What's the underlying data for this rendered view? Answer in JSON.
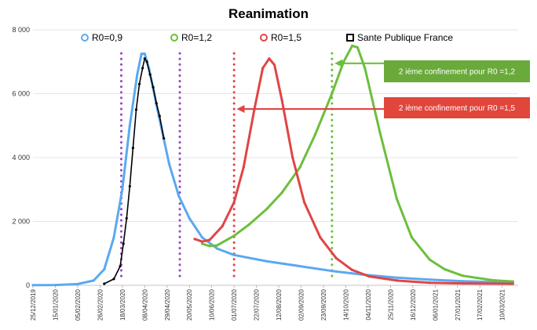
{
  "chart_data": {
    "type": "line",
    "title": "Reanimation",
    "xlabel": "",
    "ylabel": "",
    "x_start": "2019-12-25",
    "x_end": "2021-03-25",
    "ylim": [
      0,
      8000
    ],
    "y_ticks": [
      "0",
      "2 000",
      "4 000",
      "6 000",
      "8 000"
    ],
    "x_ticks": [
      "25/12/2019",
      "15/01/2020",
      "05/02/2020",
      "26/02/2020",
      "18/03/2020",
      "08/04/2020",
      "29/04/2020",
      "20/05/2020",
      "10/06/2020",
      "01/07/2020",
      "22/07/2020",
      "12/08/2020",
      "02/09/2020",
      "23/09/2020",
      "14/10/2020",
      "04/11/2020",
      "25/11/2020",
      "16/12/2020",
      "06/01/2021",
      "27/01/2021",
      "17/02/2021",
      "10/03/2021"
    ],
    "grid": "horizontal",
    "legend_position": "top",
    "series": [
      {
        "name": "R0=0,9",
        "color": "#5aa9f0",
        "points": [
          [
            "2019-12-25",
            5
          ],
          [
            "2020-01-15",
            10
          ],
          [
            "2020-02-05",
            40
          ],
          [
            "2020-02-20",
            150
          ],
          [
            "2020-03-01",
            500
          ],
          [
            "2020-03-10",
            1500
          ],
          [
            "2020-03-18",
            3000
          ],
          [
            "2020-03-25",
            5000
          ],
          [
            "2020-04-01",
            6600
          ],
          [
            "2020-04-05",
            7250
          ],
          [
            "2020-04-08",
            7250
          ],
          [
            "2020-04-12",
            6800
          ],
          [
            "2020-04-20",
            5500
          ],
          [
            "2020-05-01",
            3800
          ],
          [
            "2020-05-10",
            2800
          ],
          [
            "2020-05-20",
            2100
          ],
          [
            "2020-06-01",
            1500
          ],
          [
            "2020-06-15",
            1150
          ],
          [
            "2020-07-01",
            950
          ],
          [
            "2020-08-01",
            750
          ],
          [
            "2020-09-01",
            600
          ],
          [
            "2020-10-01",
            450
          ],
          [
            "2020-11-01",
            330
          ],
          [
            "2020-12-01",
            240
          ],
          [
            "2021-01-01",
            180
          ],
          [
            "2021-02-01",
            130
          ],
          [
            "2021-03-01",
            100
          ],
          [
            "2021-03-20",
            90
          ]
        ]
      },
      {
        "name": "R0=1,2",
        "color": "#6cbf3c",
        "points": [
          [
            "2020-06-01",
            1300
          ],
          [
            "2020-06-08",
            1230
          ],
          [
            "2020-06-15",
            1250
          ],
          [
            "2020-07-01",
            1550
          ],
          [
            "2020-07-15",
            1900
          ],
          [
            "2020-08-01",
            2400
          ],
          [
            "2020-08-15",
            2900
          ],
          [
            "2020-09-01",
            3700
          ],
          [
            "2020-09-15",
            4700
          ],
          [
            "2020-10-01",
            6000
          ],
          [
            "2020-10-12",
            7000
          ],
          [
            "2020-10-20",
            7500
          ],
          [
            "2020-10-25",
            7450
          ],
          [
            "2020-11-01",
            6800
          ],
          [
            "2020-11-15",
            4800
          ],
          [
            "2020-12-01",
            2700
          ],
          [
            "2020-12-15",
            1500
          ],
          [
            "2021-01-01",
            800
          ],
          [
            "2021-01-15",
            500
          ],
          [
            "2021-02-01",
            300
          ],
          [
            "2021-03-01",
            160
          ],
          [
            "2021-03-20",
            120
          ]
        ]
      },
      {
        "name": "R0=1,5",
        "color": "#e04545",
        "points": [
          [
            "2020-05-25",
            1450
          ],
          [
            "2020-06-01",
            1370
          ],
          [
            "2020-06-08",
            1420
          ],
          [
            "2020-06-20",
            1850
          ],
          [
            "2020-07-01",
            2600
          ],
          [
            "2020-07-10",
            3700
          ],
          [
            "2020-07-20",
            5500
          ],
          [
            "2020-07-28",
            6800
          ],
          [
            "2020-08-03",
            7100
          ],
          [
            "2020-08-08",
            6900
          ],
          [
            "2020-08-15",
            5800
          ],
          [
            "2020-08-25",
            4000
          ],
          [
            "2020-09-05",
            2600
          ],
          [
            "2020-09-20",
            1500
          ],
          [
            "2020-10-05",
            850
          ],
          [
            "2020-10-20",
            480
          ],
          [
            "2020-11-05",
            280
          ],
          [
            "2020-12-01",
            150
          ],
          [
            "2021-01-01",
            80
          ],
          [
            "2021-02-01",
            60
          ],
          [
            "2021-03-20",
            50
          ]
        ]
      },
      {
        "name": "Sante Publique France",
        "color": "#000000",
        "points": [
          [
            "2020-03-01",
            50
          ],
          [
            "2020-03-10",
            200
          ],
          [
            "2020-03-16",
            600
          ],
          [
            "2020-03-19",
            1300
          ],
          [
            "2020-03-22",
            2100
          ],
          [
            "2020-03-25",
            3100
          ],
          [
            "2020-03-28",
            4300
          ],
          [
            "2020-03-31",
            5500
          ],
          [
            "2020-04-03",
            6300
          ],
          [
            "2020-04-06",
            6800
          ],
          [
            "2020-04-08",
            7100
          ],
          [
            "2020-04-10",
            7000
          ],
          [
            "2020-04-13",
            6600
          ],
          [
            "2020-04-16",
            6200
          ],
          [
            "2020-04-19",
            5700
          ],
          [
            "2020-04-22",
            5300
          ],
          [
            "2020-04-26",
            4600
          ]
        ]
      }
    ],
    "vlines": [
      {
        "date": "2020-03-17",
        "color": "#9b45c9"
      },
      {
        "date": "2020-05-11",
        "color": "#9b45c9"
      },
      {
        "date": "2020-07-01",
        "color": "#e04545"
      },
      {
        "date": "2020-10-01",
        "color": "#6cbf3c"
      }
    ],
    "annotations": [
      {
        "text": "2 ième confinement pour R0 =1,2",
        "color": "#6aaa3a",
        "arrow_color": "#6cbf3c",
        "target_date": "2020-10-02",
        "value": 6950
      },
      {
        "text": "2 ième confinement pour R0 =1,5",
        "color": "#e0463c",
        "arrow_color": "#e04545",
        "target_date": "2020-07-02",
        "value": 5520
      }
    ]
  }
}
